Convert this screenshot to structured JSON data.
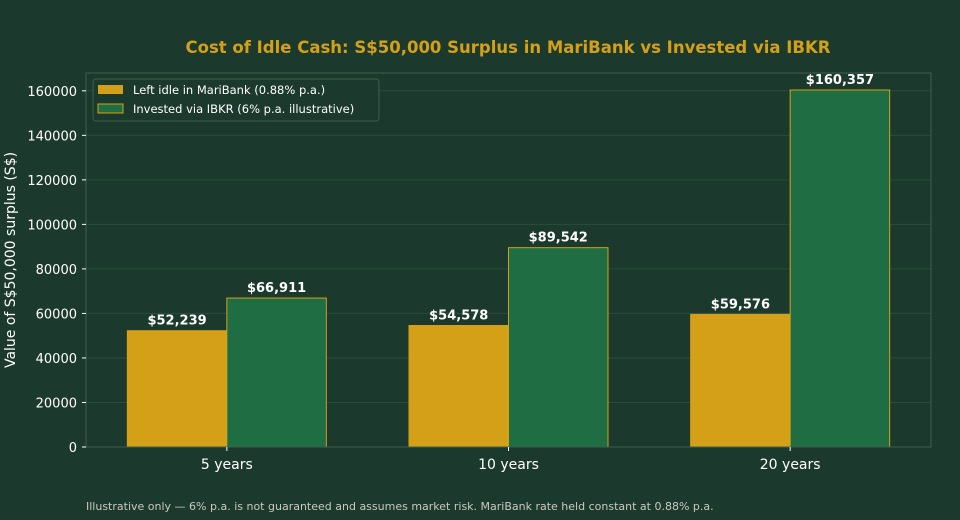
{
  "chart_data": {
    "type": "bar",
    "title": "Cost of Idle Cash: S$50,000 Surplus in MariBank vs Invested via IBKR",
    "xlabel": "",
    "ylabel": "Value of S$50,000 surplus (S$)",
    "categories": [
      "5 years",
      "10 years",
      "20 years"
    ],
    "series": [
      {
        "name": "Left idle in MariBank (0.88% p.a.)",
        "values": [
          52239,
          54578,
          59576
        ],
        "labels": [
          "$52,239",
          "$54,578",
          "$59,576"
        ],
        "color": "#d4a017"
      },
      {
        "name": "Invested via IBKR (6% p.a. illustrative)",
        "values": [
          66911,
          89542,
          160357
        ],
        "labels": [
          "$66,911",
          "$89,542",
          "$160,357"
        ],
        "color": "#1f6e43"
      }
    ],
    "ylim": [
      0,
      168000
    ],
    "yticks": [
      0,
      20000,
      40000,
      60000,
      80000,
      100000,
      120000,
      140000,
      160000
    ],
    "ytick_labels": [
      "0",
      "20000",
      "40000",
      "60000",
      "80000",
      "100000",
      "120000",
      "140000",
      "160000"
    ],
    "grid": true,
    "legend_position": "top-left"
  },
  "footnote": "Illustrative only — 6% p.a. is not guaranteed and assumes market risk. MariBank rate held constant at 0.88% p.a.",
  "colors": {
    "background": "#1b3a2d",
    "title": "#d4a017",
    "text": "#ffffff",
    "bar_edge": "#d4a017",
    "grid": "#2a4d3b",
    "frame": "#3f5e4d"
  }
}
